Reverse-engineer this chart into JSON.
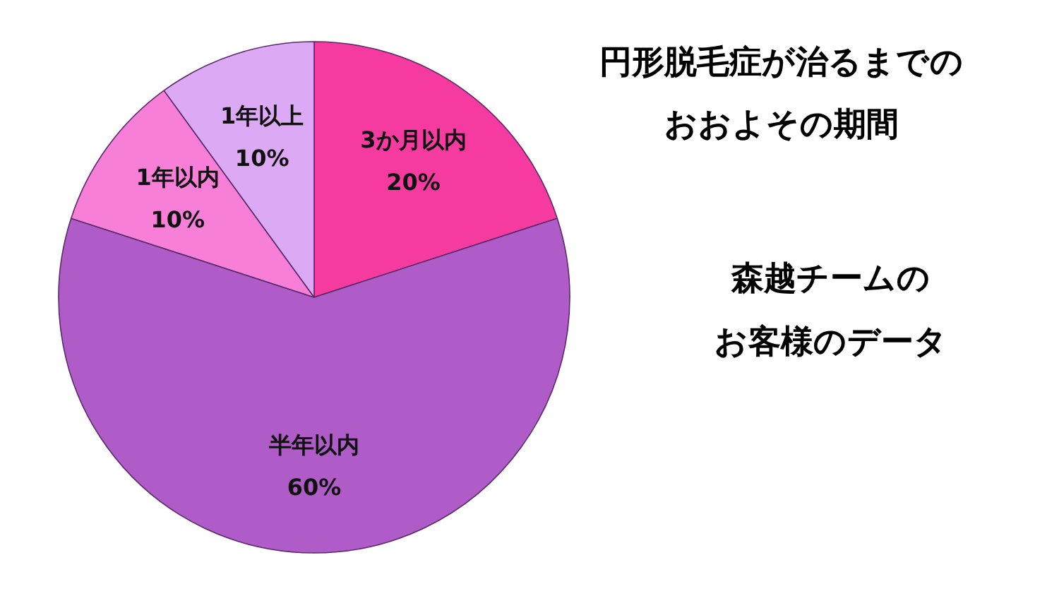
{
  "chart_data": {
    "type": "pie",
    "title": "円形脱毛症が治るまでのおおよその期間",
    "categories": [
      "3か月以内",
      "半年以内",
      "1年以内",
      "1年以上"
    ],
    "values": [
      20,
      60,
      10,
      10
    ],
    "colors": [
      "#f53ba0",
      "#b05cc8",
      "#f77fd8",
      "#dcaaf5"
    ],
    "value_labels": [
      "20%",
      "60%",
      "10%",
      "10%"
    ],
    "annotations": [
      "森越チームの",
      "お客様のデータ"
    ]
  }
}
